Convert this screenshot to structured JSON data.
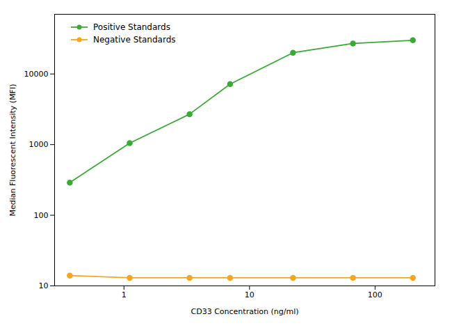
{
  "chart_data": {
    "type": "line",
    "xlabel": "CD33 Concentration (ng/ml)",
    "ylabel": "Median Fluorescent Intensity (MFI)",
    "x": [
      0.37,
      1.11,
      3.33,
      7.0,
      22.2,
      66.7,
      200.0
    ],
    "series": [
      {
        "name": "Positive Standards",
        "color": "#3aaa35",
        "values": [
          290,
          1050,
          2700,
          7200,
          20000,
          27000,
          30000
        ]
      },
      {
        "name": "Negative Standards",
        "color": "#f5a623",
        "values": [
          14,
          13,
          13,
          13,
          13,
          13,
          13
        ]
      }
    ],
    "xlim": [
      0.28,
      300
    ],
    "ylim": [
      10,
      70000
    ],
    "xticks": [
      1,
      10,
      100
    ],
    "yticks": [
      10,
      100,
      1000,
      10000
    ],
    "log": true,
    "grid": false,
    "legend": "upper left",
    "marker": "circle"
  }
}
